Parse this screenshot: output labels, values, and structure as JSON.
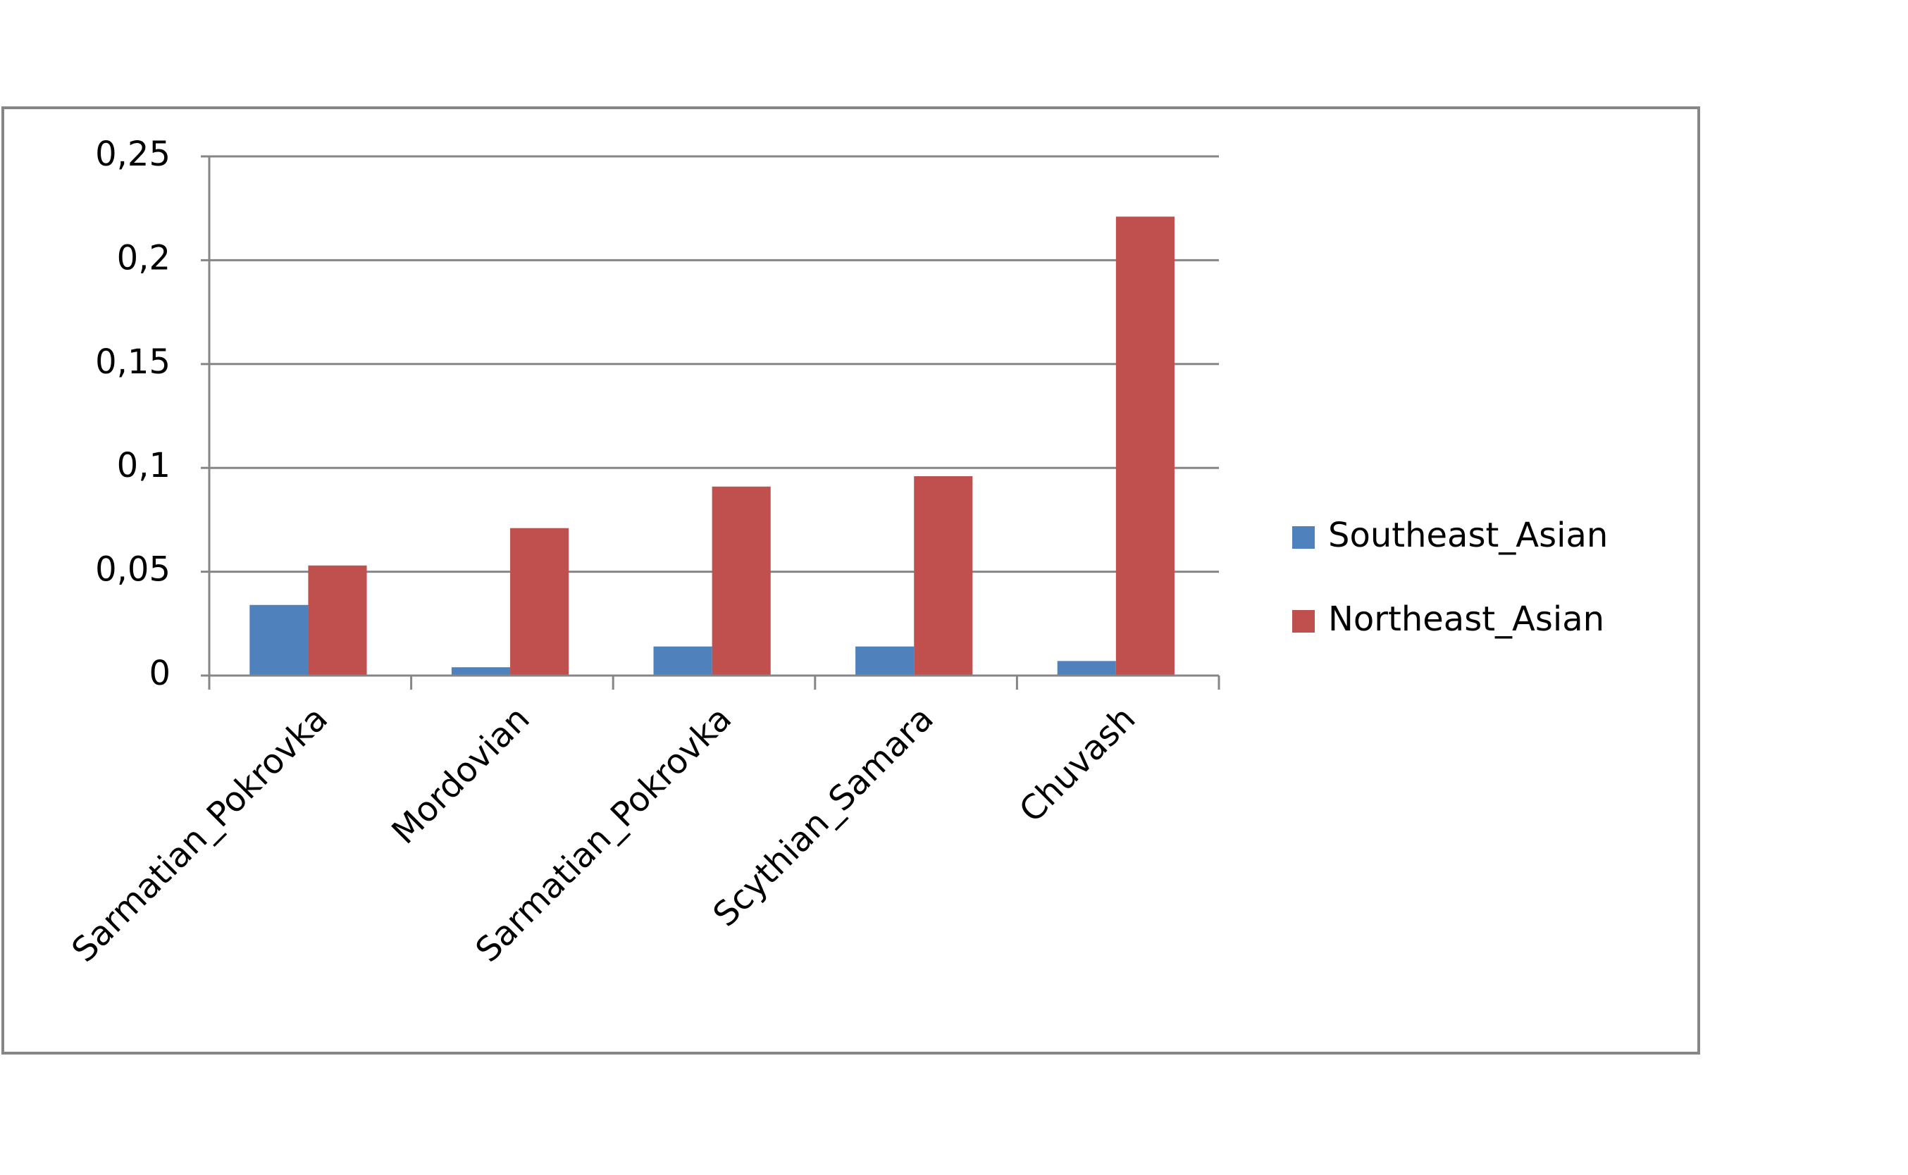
{
  "chart_data": {
    "type": "bar",
    "categories": [
      "Sarmatian_Pokrovka",
      "Mordovian",
      "Sarmatian_Pokrovka",
      "Scythian_Samara",
      "Chuvash"
    ],
    "series": [
      {
        "name": "Southeast_Asian",
        "color": "#4f81bd",
        "values": [
          0.034,
          0.004,
          0.014,
          0.014,
          0.007
        ]
      },
      {
        "name": "Northeast_Asian",
        "color": "#c0504d",
        "values": [
          0.053,
          0.071,
          0.091,
          0.096,
          0.221
        ]
      }
    ],
    "ylim": [
      0,
      0.25
    ],
    "yticks": [
      0,
      {
        "value": 0.05,
        "label": "0,05"
      },
      {
        "value": 0.1,
        "label": "0,1"
      },
      {
        "value": 0.15,
        "label": "0,15"
      },
      {
        "value": 0.2,
        "label": "0,2"
      },
      {
        "value": 0.25,
        "label": "0,25"
      }
    ],
    "grid": true,
    "legend": "right"
  }
}
